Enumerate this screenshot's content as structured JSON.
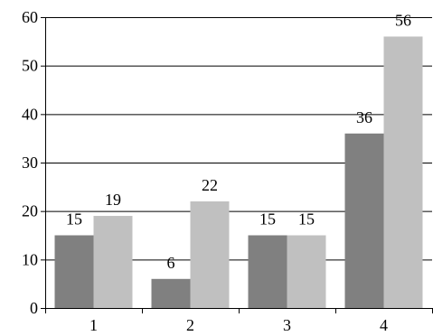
{
  "chart_data": {
    "type": "bar",
    "categories": [
      "1",
      "2",
      "3",
      "4"
    ],
    "series": [
      {
        "values": [
          15,
          6,
          15,
          36
        ],
        "color": "#808080"
      },
      {
        "values": [
          19,
          22,
          15,
          56
        ],
        "color": "#c0c0c0"
      }
    ],
    "ylim": [
      0,
      60
    ],
    "yticks": [
      "0",
      "10",
      "20",
      "30",
      "40",
      "50",
      "60"
    ],
    "data_labels": [
      [
        "15",
        "6",
        "15",
        "36"
      ],
      [
        "19",
        "22",
        "15",
        "56"
      ]
    ],
    "grid": true,
    "gridline_color": "#000000",
    "axis_color": "#000000",
    "legend": "none"
  }
}
